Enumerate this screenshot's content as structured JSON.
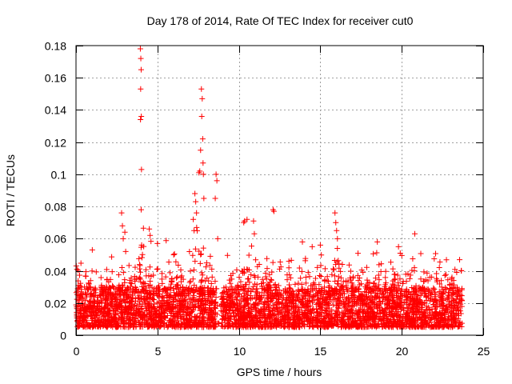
{
  "chart_data": {
    "type": "scatter",
    "title": "Day 178 of 2014, Rate Of TEC Index for receiver cut0",
    "xlabel": "GPS time / hours",
    "ylabel": "ROTI / TECUs",
    "xlim": [
      0,
      25
    ],
    "ylim": [
      0,
      0.18
    ],
    "xticks": [
      0,
      5,
      10,
      15,
      20,
      25
    ],
    "yticks": [
      0,
      0.02,
      0.04,
      0.06,
      0.08,
      0.1,
      0.12,
      0.14,
      0.16,
      0.18
    ],
    "grid": true,
    "marker": "+",
    "series_color": "#ff0000",
    "background_cloud": {
      "x_range": [
        0,
        23.7
      ],
      "baseline_range": [
        0.005,
        0.03
      ],
      "gap_hours": [
        8.6,
        8.9
      ]
    },
    "series": [
      {
        "name": "ROTI",
        "x": [
          3.95,
          3.98,
          4.0,
          3.97,
          4.01,
          3.96,
          4.02,
          4.0,
          4.03,
          7.7,
          7.75,
          7.72,
          7.78,
          7.8,
          7.65,
          7.6,
          7.55,
          7.3,
          7.35,
          7.4,
          7.2,
          7.25,
          7.82,
          7.85,
          8.6,
          8.65,
          8.55,
          8.7,
          12.1,
          12.15,
          10.3,
          10.35,
          10.5,
          15.9,
          15.95,
          16.0,
          16.05,
          2.8,
          2.85,
          3.0,
          4.5,
          4.55,
          13.9,
          20.8,
          10.9,
          10.95,
          2.9,
          3.05,
          15.0,
          14.5,
          18.5,
          19.8,
          6.0,
          1.0,
          5.0
        ],
        "y": [
          0.178,
          0.172,
          0.165,
          0.153,
          0.136,
          0.134,
          0.103,
          0.078,
          0.056,
          0.153,
          0.147,
          0.136,
          0.122,
          0.107,
          0.115,
          0.102,
          0.101,
          0.088,
          0.083,
          0.076,
          0.072,
          0.065,
          0.1,
          0.085,
          0.1,
          0.096,
          0.085,
          0.06,
          0.078,
          0.077,
          0.07,
          0.071,
          0.072,
          0.076,
          0.07,
          0.065,
          0.06,
          0.076,
          0.068,
          0.064,
          0.066,
          0.062,
          0.058,
          0.063,
          0.071,
          0.063,
          0.06,
          0.052,
          0.056,
          0.055,
          0.058,
          0.055,
          0.05,
          0.053,
          0.057
        ]
      }
    ]
  }
}
